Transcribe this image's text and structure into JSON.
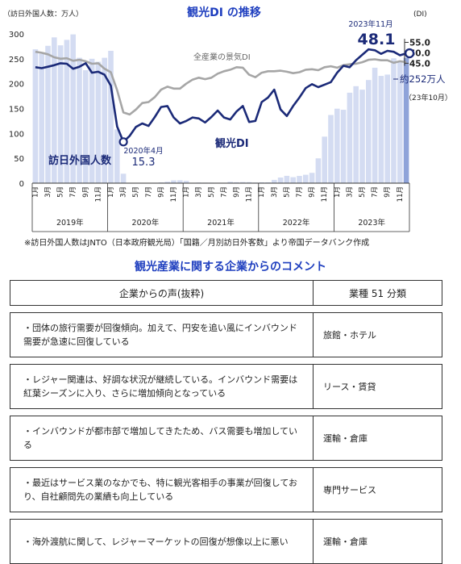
{
  "chart_data": {
    "type": "bar+line",
    "title": "観光DI の推移",
    "left_axis_label": "（訪日外国人数：万人）",
    "right_axis_label": "(DI)",
    "left_ylim": [
      0,
      300
    ],
    "left_ticks": [
      0,
      50,
      100,
      150,
      200,
      250,
      300
    ],
    "right_ticks": [
      "55.0",
      "50.0",
      "45.0"
    ],
    "month_labels": [
      "1月",
      "3月",
      "5月",
      "7月",
      "9月",
      "11月",
      "1月",
      "3月",
      "5月",
      "7月",
      "9月",
      "11月",
      "1月",
      "3月",
      "5月",
      "7月",
      "9月",
      "11月",
      "1月",
      "3月",
      "5月",
      "7月",
      "9月",
      "11月",
      "1月",
      "3月",
      "5月",
      "7月",
      "9月",
      "11月"
    ],
    "years": [
      "2019年",
      "2020年",
      "2021年",
      "2022年",
      "2023年"
    ],
    "series": [
      {
        "name": "訪日外国人数",
        "chart": "bar",
        "values": [
          269,
          260,
          276,
          293,
          277,
          288,
          299,
          252,
          227,
          250,
          244,
          252,
          266,
          108,
          19,
          0.3,
          0.2,
          0.3,
          0.4,
          0.9,
          1.4,
          2.8,
          5.6,
          5.8,
          4.6,
          0.7,
          1.2,
          1.1,
          1.0,
          0.9,
          0.8,
          2.6,
          1.8,
          2.2,
          2.0,
          1.2,
          1.7,
          1.7,
          6.6,
          11.3,
          14.7,
          12.0,
          14.5,
          16.9,
          20.7,
          49.9,
          93.5,
          137.0,
          149.7,
          147.5,
          181.8,
          194.9,
          187.9,
          207.3,
          232.0,
          215.6,
          218.2,
          251.0,
          244.0,
          252.0
        ]
      },
      {
        "name": "観光DI",
        "chart": "line",
        "values": [
          233,
          231,
          234,
          237,
          241,
          240,
          230,
          234,
          241,
          222,
          224,
          218,
          196,
          114,
          83,
          95,
          113,
          120,
          115,
          133,
          153,
          155,
          132,
          120,
          125,
          132,
          130,
          122,
          133,
          146,
          132,
          128,
          144,
          155,
          123,
          125,
          163,
          172,
          188,
          148,
          135,
          155,
          172,
          191,
          199,
          193,
          198,
          203,
          222,
          236,
          233,
          247,
          258,
          269,
          267,
          260,
          266,
          264,
          257,
          261
        ]
      },
      {
        "name": "全産業の景気DI",
        "chart": "line",
        "values": [
          264,
          262,
          259,
          253,
          250,
          251,
          246,
          248,
          245,
          240,
          241,
          230,
          223,
          187,
          142,
          138,
          148,
          161,
          163,
          173,
          188,
          194,
          190,
          190,
          200,
          208,
          212,
          209,
          212,
          220,
          225,
          228,
          233,
          232,
          218,
          213,
          222,
          225,
          225,
          226,
          224,
          221,
          223,
          228,
          229,
          227,
          233,
          235,
          232,
          237,
          239,
          240,
          243,
          248,
          249,
          247,
          247,
          242,
          245,
          243
        ]
      }
    ],
    "annotations": {
      "min_label": "2020年4月",
      "min_value": "15.3",
      "last_label": "2023年11月",
      "last_value": "48.1",
      "visitor_label": "約252万人",
      "visitor_date": "（23年10月）"
    },
    "ticks_left_text": [
      "0",
      "50",
      "100",
      "150",
      "200",
      "250",
      "300"
    ]
  },
  "footnote": "※訪日外国人数はJNTO（日本政府観光局）「国籍／月別訪日外客数」より帝国データバンク作成",
  "section_title": "観光産業に関する企業からのコメント",
  "table": {
    "headers": [
      "企業からの声(抜粋)",
      "業種 51 分類"
    ],
    "rows": [
      {
        "voice": "・団体の旅行需要が回復傾向。加えて、円安を追い風にインバウンド需要が急速に回復している",
        "category": "旅館・ホテル"
      },
      {
        "voice": "・レジャー関連は、好調な状況が継続している。インバウンド需要は紅葉シーズンに入り、さらに増加傾向となっている",
        "category": "リース・賃貸"
      },
      {
        "voice": "・インバウンドが都市部で増加してきたため、バス需要も増加している",
        "category": "運輸・倉庫"
      },
      {
        "voice": "・最近はサービス業のなかでも、特に観光客相手の事業が回復しており、自社顧問先の業績も向上している",
        "category": "専門サービス"
      },
      {
        "voice": "・海外渡航に関して、レジャーマーケットの回復が想像以上に悪い",
        "category": "運輸・倉庫"
      }
    ]
  }
}
